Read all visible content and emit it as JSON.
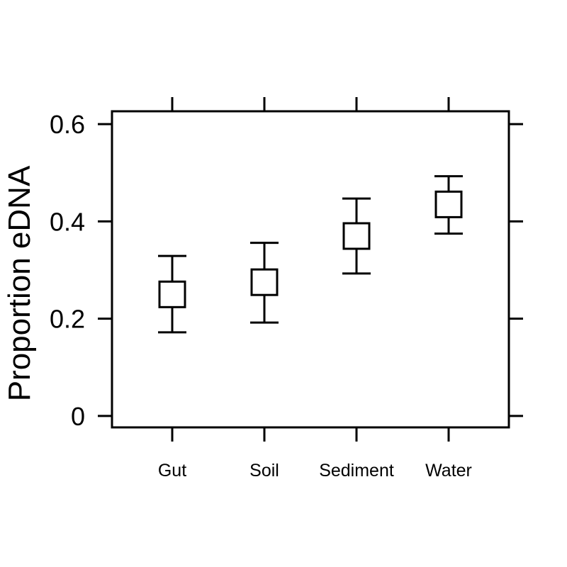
{
  "chart_data": {
    "type": "scatter",
    "title": "",
    "xlabel": "",
    "ylabel": "Proportion eDNA",
    "categories": [
      "Gut",
      "Soil",
      "Sediment",
      "Water"
    ],
    "series": [
      {
        "values": [
          0.25,
          0.275,
          0.37,
          0.435
        ],
        "lower": [
          0.172,
          0.192,
          0.293,
          0.375
        ],
        "upper": [
          0.329,
          0.356,
          0.447,
          0.493
        ]
      }
    ],
    "ylim": [
      -0.0235,
      0.6265
    ],
    "yticks": [
      0,
      0.2,
      0.4,
      0.6
    ],
    "ytick_labels": [
      "0",
      "0.2",
      "0.4",
      "0.6"
    ],
    "grid": false,
    "marker": "open-square",
    "error_bars": true
  }
}
